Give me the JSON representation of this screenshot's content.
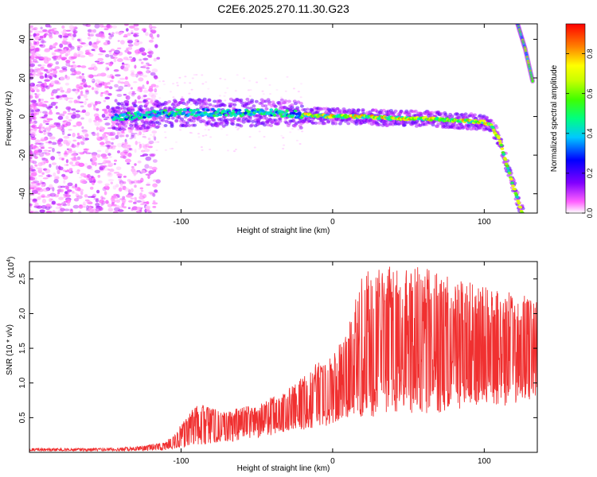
{
  "title": "C2E6.2025.270.11.30.G23",
  "chart_data": [
    {
      "type": "heatmap",
      "title": "C2E6.2025.270.11.30.G23",
      "xlabel": "Height of straight line (km)",
      "ylabel": "Frequency (Hz)",
      "xlim": [
        -200,
        135
      ],
      "ylim": [
        -50,
        48
      ],
      "x_ticks": [
        -100,
        0,
        100
      ],
      "x_tick_labels": [
        "-100",
        "0",
        "100"
      ],
      "y_ticks": [
        -40,
        -20,
        0,
        20,
        40
      ],
      "y_tick_labels": [
        "-40",
        "-20",
        "0",
        "20",
        "40"
      ],
      "colorbar": {
        "label": "Normalized spectral amplitude",
        "range": [
          0,
          0.95
        ],
        "ticks": [
          0.0,
          0.2,
          0.4,
          0.6,
          0.8
        ],
        "tick_labels": [
          "0.0",
          "0.2",
          "0.4",
          "0.6",
          "0.8"
        ],
        "colormap": [
          "#ffffff",
          "#ff60ff",
          "#8000ff",
          "#0000ff",
          "#00c8ff",
          "#00ff80",
          "#40ff00",
          "#c8ff00",
          "#ffff00",
          "#ff8000",
          "#ff0000"
        ]
      },
      "ridge": {
        "x": [
          -140,
          -120,
          -100,
          -80,
          -60,
          -40,
          -20,
          0,
          20,
          40,
          60,
          80,
          100,
          105,
          110,
          115,
          120,
          125
        ],
        "y": [
          0,
          1,
          2,
          2,
          2,
          2,
          1,
          0,
          0,
          -1,
          -1,
          -2,
          -3,
          -5,
          -12,
          -25,
          -38,
          -50
        ]
      },
      "second_ridge": {
        "x": [
          122,
          127,
          132
        ],
        "y": [
          48,
          35,
          18
        ]
      }
    },
    {
      "type": "line",
      "xlabel": "Height of straight line (km)",
      "ylabel": "SNR (10 * v/v)",
      "scale_label": "(x10",
      "scale_exponent": "4",
      "xlim": [
        -200,
        135
      ],
      "ylim": [
        0,
        2.75
      ],
      "x_ticks": [
        -100,
        0,
        100
      ],
      "x_tick_labels": [
        "-100",
        "0",
        "100"
      ],
      "y_ticks": [
        0.5,
        1.0,
        1.5,
        2.0,
        2.5
      ],
      "y_tick_labels": [
        "0.5",
        "1.0",
        "1.5",
        "2.0",
        "2.5"
      ],
      "line_color": "#f03030",
      "envelope": {
        "x": [
          -200,
          -150,
          -130,
          -110,
          -100,
          -90,
          -70,
          -50,
          -30,
          -10,
          0,
          10,
          20,
          40,
          60,
          80,
          100,
          120,
          135
        ],
        "min": [
          0.02,
          0.02,
          0.02,
          0.03,
          0.05,
          0.1,
          0.15,
          0.2,
          0.3,
          0.35,
          0.4,
          0.45,
          0.5,
          0.5,
          0.55,
          0.6,
          0.6,
          0.7,
          0.8
        ],
        "max": [
          0.06,
          0.06,
          0.08,
          0.15,
          0.4,
          0.7,
          0.6,
          0.7,
          0.9,
          1.3,
          1.4,
          1.8,
          2.6,
          2.7,
          2.7,
          2.5,
          2.4,
          2.3,
          2.2
        ]
      }
    }
  ]
}
